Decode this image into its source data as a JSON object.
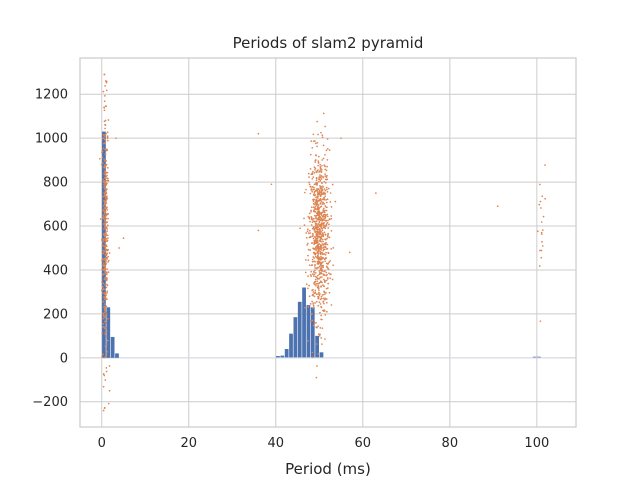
{
  "chart_data": {
    "type": "bar",
    "title": "Periods of slam2 pyramid",
    "xlabel": "Period (ms)",
    "ylabel": "",
    "xlim": [
      -5,
      109
    ],
    "ylim": [
      -315,
      1365
    ],
    "x_ticks": [
      0,
      20,
      40,
      60,
      80,
      100
    ],
    "y_ticks": [
      -200,
      0,
      200,
      400,
      600,
      800,
      1000,
      1200
    ],
    "grid": true,
    "legend": "none",
    "colors": {
      "bars": "#4c72b0",
      "points": "#dd8452",
      "grid": "#cccccc",
      "frame": "#cccccc"
    },
    "series": [
      {
        "kind": "histogram",
        "bin_width": 1,
        "bins": [
          {
            "x": 0,
            "y": 1030
          },
          {
            "x": 1,
            "y": 230
          },
          {
            "x": 2,
            "y": 95
          },
          {
            "x": 3,
            "y": 20
          },
          {
            "x": 40,
            "y": 8
          },
          {
            "x": 41,
            "y": 10
          },
          {
            "x": 42,
            "y": 40
          },
          {
            "x": 43,
            "y": 110
          },
          {
            "x": 44,
            "y": 185
          },
          {
            "x": 45,
            "y": 255
          },
          {
            "x": 46,
            "y": 320
          },
          {
            "x": 47,
            "y": 240
          },
          {
            "x": 48,
            "y": 230
          },
          {
            "x": 49,
            "y": 100
          },
          {
            "x": 50,
            "y": 25
          },
          {
            "x": 99,
            "y": 5
          },
          {
            "x": 100,
            "y": 5
          }
        ]
      },
      {
        "kind": "scatter",
        "clusters": [
          {
            "x_center": 0.8,
            "x_spread": 0.8,
            "y_center": 560,
            "y_spread": 300,
            "count": 400,
            "y_min": -240,
            "y_max": 1290
          },
          {
            "x_center": 50,
            "x_spread": 2.6,
            "y_center": 560,
            "y_spread": 190,
            "count": 900,
            "y_min": -90,
            "y_max": 1260
          },
          {
            "x_center": 101,
            "x_spread": 1.2,
            "y_center": 550,
            "y_spread": 180,
            "count": 20,
            "y_min": 80,
            "y_max": 980
          }
        ],
        "outliers": [
          {
            "x": 36,
            "y": 1020
          },
          {
            "x": 36,
            "y": 580
          },
          {
            "x": 39,
            "y": 790
          },
          {
            "x": 63,
            "y": 750
          },
          {
            "x": 91,
            "y": 690
          },
          {
            "x": 3.3,
            "y": 1000
          },
          {
            "x": 5,
            "y": 545
          },
          {
            "x": 4,
            "y": 500
          },
          {
            "x": 55,
            "y": 1000
          },
          {
            "x": 57,
            "y": 480
          },
          {
            "x": 1.8,
            "y": -150
          }
        ]
      }
    ]
  }
}
